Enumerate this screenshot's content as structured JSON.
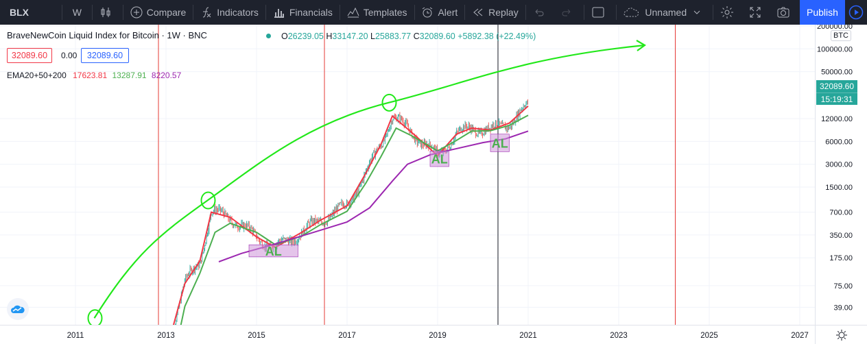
{
  "toolbar": {
    "symbol": "BLX",
    "interval": "W",
    "compare": "Compare",
    "indicators": "Indicators",
    "financials": "Financials",
    "templates": "Templates",
    "alert": "Alert",
    "replay": "Replay",
    "layout_name": "Unnamed",
    "publish": "Publish"
  },
  "legend": {
    "title": "BraveNewCoin Liquid Index for Bitcoin · 1W · BNC",
    "o_key": "O",
    "o": "26239.05",
    "h_key": "H",
    "h": "33147.20",
    "l_key": "L",
    "l": "25883.77",
    "c_key": "C",
    "c": "32089.60",
    "change": "+5892.38 (+22.49%)",
    "bid": "32089.60",
    "spread": "0.00",
    "ask": "32089.60",
    "ema_label": "EMA20+50+200",
    "ema20": "17623.81",
    "ema50": "13287.91",
    "ema200": "8220.57"
  },
  "price_axis": {
    "currency": "BTC",
    "last_price": "32089.60",
    "countdown": "15:19:31",
    "ticks": [
      "200000.00",
      "100000.00",
      "50000.00",
      "12000.00",
      "6000.00",
      "3000.00",
      "1500.00",
      "700.00",
      "350.00",
      "175.00",
      "75.00",
      "39.00"
    ]
  },
  "time_axis": {
    "ticks": [
      "2011",
      "2013",
      "2015",
      "2017",
      "2019",
      "2021",
      "2023",
      "2025",
      "2027"
    ]
  },
  "annotations": {
    "accumulation_label": "AL"
  },
  "colors": {
    "up": "#26a69a",
    "down": "#ef5350",
    "ema20": "#f23645",
    "ema50": "#4caf50",
    "ema200": "#9c27b0",
    "trend_curve": "#22e81a",
    "cycle_lines": "#e53935",
    "accumulation_box": "#ce93d8"
  },
  "chart_data": {
    "type": "line",
    "title": "BraveNewCoin Liquid Index for Bitcoin · 1W · BNC",
    "y_scale": "log",
    "ylim": [
      25,
      250000
    ],
    "xlim": [
      "2010-01",
      "2027-12"
    ],
    "x_ticks": [
      "2011",
      "2013",
      "2015",
      "2017",
      "2019",
      "2021",
      "2023",
      "2025",
      "2027"
    ],
    "y_ticks": [
      200000,
      100000,
      50000,
      12000,
      6000,
      3000,
      1500,
      700,
      350,
      175,
      75,
      39
    ],
    "series": [
      {
        "name": "EMA20",
        "x": [
          "2013-02",
          "2013-06",
          "2013-10",
          "2014-01",
          "2014-06",
          "2015-01",
          "2015-06",
          "2016-01",
          "2016-06",
          "2017-01",
          "2017-06",
          "2017-10",
          "2018-01",
          "2018-06",
          "2019-01",
          "2019-06",
          "2019-10",
          "2020-03",
          "2020-08",
          "2021-01"
        ],
        "values": [
          15,
          80,
          160,
          700,
          600,
          330,
          240,
          380,
          550,
          850,
          2300,
          5500,
          13000,
          8000,
          3900,
          7500,
          9000,
          8500,
          10500,
          17623.81
        ]
      },
      {
        "name": "EMA50",
        "x": [
          "2013-03",
          "2013-06",
          "2013-10",
          "2014-02",
          "2014-06",
          "2015-01",
          "2015-06",
          "2016-01",
          "2016-06",
          "2017-01",
          "2017-06",
          "2017-10",
          "2018-02",
          "2018-06",
          "2019-01",
          "2019-06",
          "2019-10",
          "2020-03",
          "2020-08",
          "2021-01"
        ],
        "values": [
          8,
          40,
          110,
          380,
          500,
          380,
          260,
          340,
          480,
          720,
          1700,
          3800,
          9000,
          7200,
          4500,
          6200,
          8200,
          8300,
          9800,
          13287.91
        ]
      },
      {
        "name": "EMA200",
        "x": [
          "2014-03",
          "2014-09",
          "2015-04",
          "2016-01",
          "2016-07",
          "2017-01",
          "2017-07",
          "2018-01",
          "2018-05",
          "2018-11",
          "2019-05",
          "2020-01",
          "2020-07",
          "2021-01"
        ],
        "values": [
          155,
          200,
          250,
          340,
          420,
          520,
          800,
          1800,
          3000,
          4000,
          4700,
          5800,
          6500,
          8220.57
        ]
      }
    ],
    "annotations": {
      "trend_curve_touch_points": [
        [
          "2011-06",
          28
        ],
        [
          "2013-12",
          1000
        ],
        [
          "2017-12",
          19500
        ]
      ],
      "accumulation_zones": [
        {
          "label": "AL",
          "x": [
            "2014-11",
            "2015-12"
          ],
          "y": [
            180,
            260
          ]
        },
        {
          "label": "AL",
          "x": [
            "2018-11",
            "2019-04"
          ],
          "y": [
            2800,
            4500
          ]
        },
        {
          "label": "AL",
          "x": [
            "2020-03",
            "2020-08"
          ],
          "y": [
            4400,
            7500
          ]
        }
      ],
      "cycle_vertical_lines": [
        "2012-11",
        "2016-07",
        "2020-05",
        "2024-04"
      ]
    }
  }
}
